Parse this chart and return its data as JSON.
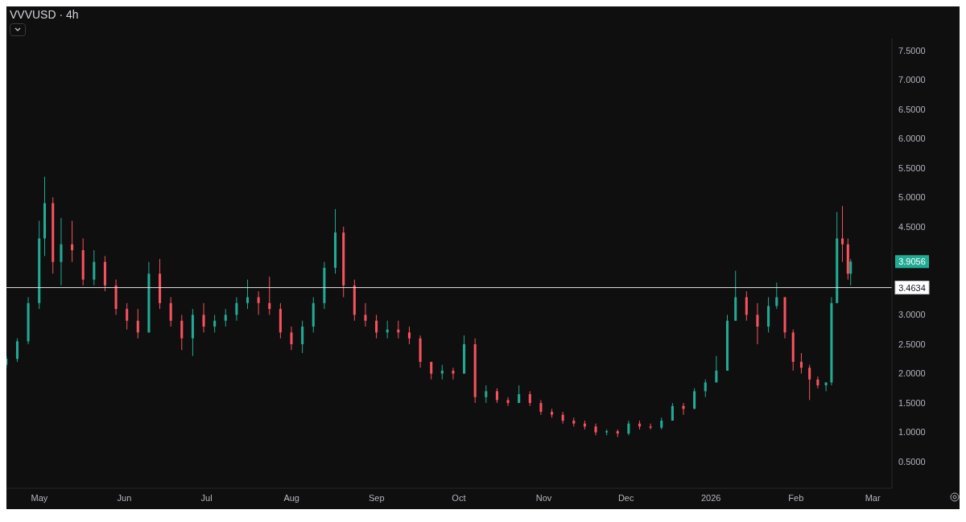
{
  "chart_data": {
    "type": "candlestick",
    "title": "VVVUSD · 4h",
    "x": [
      "2025-04-19",
      "2025-04-23",
      "2025-04-27",
      "2025-05-01",
      "2025-05-03",
      "2025-05-06",
      "2025-05-09",
      "2025-05-13",
      "2025-05-17",
      "2025-05-21",
      "2025-05-25",
      "2025-05-29",
      "2025-06-02",
      "2025-06-06",
      "2025-06-10",
      "2025-06-14",
      "2025-06-18",
      "2025-06-22",
      "2025-06-26",
      "2025-06-30",
      "2025-07-04",
      "2025-07-08",
      "2025-07-12",
      "2025-07-16",
      "2025-07-20",
      "2025-07-24",
      "2025-07-28",
      "2025-08-01",
      "2025-08-05",
      "2025-08-09",
      "2025-08-13",
      "2025-08-17",
      "2025-08-20",
      "2025-08-24",
      "2025-08-28",
      "2025-09-01",
      "2025-09-05",
      "2025-09-09",
      "2025-09-13",
      "2025-09-17",
      "2025-09-21",
      "2025-09-25",
      "2025-09-29",
      "2025-10-03",
      "2025-10-07",
      "2025-10-11",
      "2025-10-15",
      "2025-10-19",
      "2025-10-23",
      "2025-10-27",
      "2025-10-31",
      "2025-11-04",
      "2025-11-08",
      "2025-11-12",
      "2025-11-16",
      "2025-11-20",
      "2025-11-24",
      "2025-11-28",
      "2025-12-02",
      "2025-12-06",
      "2025-12-10",
      "2025-12-14",
      "2025-12-18",
      "2025-12-22",
      "2025-12-26",
      "2025-12-30",
      "2026-01-03",
      "2026-01-07",
      "2026-01-10",
      "2026-01-14",
      "2026-01-18",
      "2026-01-22",
      "2026-01-25",
      "2026-01-28",
      "2026-01-31",
      "2026-02-03",
      "2026-02-06",
      "2026-02-09",
      "2026-02-12",
      "2026-02-14",
      "2026-02-16",
      "2026-02-18",
      "2026-02-20",
      "2026-02-21"
    ],
    "ohlc": [
      [
        2.15,
        2.3,
        2.1,
        2.25
      ],
      [
        2.25,
        2.6,
        2.2,
        2.55
      ],
      [
        2.55,
        3.3,
        2.5,
        3.2
      ],
      [
        3.2,
        4.6,
        3.1,
        4.3
      ],
      [
        4.3,
        5.35,
        4.0,
        4.9
      ],
      [
        4.9,
        5.0,
        3.7,
        3.9
      ],
      [
        3.9,
        4.65,
        3.5,
        4.2
      ],
      [
        4.2,
        4.6,
        3.9,
        4.1
      ],
      [
        4.1,
        4.3,
        3.5,
        3.6
      ],
      [
        3.6,
        4.1,
        3.5,
        3.9
      ],
      [
        3.9,
        4.0,
        3.4,
        3.5
      ],
      [
        3.5,
        3.6,
        3.0,
        3.1
      ],
      [
        3.1,
        3.2,
        2.75,
        2.9
      ],
      [
        2.9,
        3.1,
        2.6,
        2.7
      ],
      [
        2.7,
        3.9,
        2.7,
        3.7
      ],
      [
        3.7,
        3.95,
        3.1,
        3.2
      ],
      [
        3.2,
        3.3,
        2.8,
        2.9
      ],
      [
        2.9,
        3.0,
        2.4,
        2.6
      ],
      [
        2.6,
        3.1,
        2.3,
        3.0
      ],
      [
        3.0,
        3.2,
        2.7,
        2.8
      ],
      [
        2.8,
        3.0,
        2.7,
        2.9
      ],
      [
        2.9,
        3.1,
        2.8,
        3.0
      ],
      [
        3.0,
        3.3,
        2.9,
        3.2
      ],
      [
        3.2,
        3.6,
        3.1,
        3.3
      ],
      [
        3.3,
        3.4,
        3.0,
        3.2
      ],
      [
        3.2,
        3.65,
        3.0,
        3.1
      ],
      [
        3.1,
        3.2,
        2.6,
        2.7
      ],
      [
        2.7,
        2.8,
        2.4,
        2.5
      ],
      [
        2.5,
        2.9,
        2.35,
        2.8
      ],
      [
        2.8,
        3.3,
        2.7,
        3.2
      ],
      [
        3.2,
        3.9,
        3.1,
        3.8
      ],
      [
        3.8,
        4.8,
        3.7,
        4.4
      ],
      [
        4.4,
        4.5,
        3.3,
        3.5
      ],
      [
        3.5,
        3.6,
        2.9,
        3.0
      ],
      [
        3.0,
        3.2,
        2.8,
        2.9
      ],
      [
        2.9,
        3.0,
        2.6,
        2.7
      ],
      [
        2.7,
        2.9,
        2.6,
        2.75
      ],
      [
        2.75,
        2.9,
        2.6,
        2.7
      ],
      [
        2.7,
        2.8,
        2.5,
        2.6
      ],
      [
        2.6,
        2.65,
        2.1,
        2.2
      ],
      [
        2.2,
        2.2,
        1.9,
        2.0
      ],
      [
        2.0,
        2.15,
        1.9,
        2.05
      ],
      [
        2.05,
        2.1,
        1.9,
        2.0
      ],
      [
        2.0,
        2.65,
        2.0,
        2.5
      ],
      [
        2.5,
        2.6,
        1.5,
        1.6
      ],
      [
        1.6,
        1.8,
        1.5,
        1.7
      ],
      [
        1.7,
        1.75,
        1.5,
        1.55
      ],
      [
        1.55,
        1.6,
        1.45,
        1.5
      ],
      [
        1.5,
        1.8,
        1.5,
        1.65
      ],
      [
        1.65,
        1.7,
        1.45,
        1.5
      ],
      [
        1.5,
        1.55,
        1.3,
        1.35
      ],
      [
        1.35,
        1.4,
        1.25,
        1.3
      ],
      [
        1.3,
        1.35,
        1.15,
        1.2
      ],
      [
        1.2,
        1.25,
        1.1,
        1.15
      ],
      [
        1.15,
        1.2,
        1.05,
        1.1
      ],
      [
        1.1,
        1.15,
        0.95,
        1.0
      ],
      [
        1.0,
        1.05,
        0.95,
        1.02
      ],
      [
        1.02,
        1.05,
        0.92,
        0.98
      ],
      [
        0.98,
        1.2,
        0.95,
        1.15
      ],
      [
        1.15,
        1.2,
        1.05,
        1.1
      ],
      [
        1.1,
        1.15,
        1.05,
        1.08
      ],
      [
        1.08,
        1.25,
        1.05,
        1.2
      ],
      [
        1.2,
        1.5,
        1.2,
        1.45
      ],
      [
        1.45,
        1.5,
        1.3,
        1.4
      ],
      [
        1.4,
        1.75,
        1.4,
        1.7
      ],
      [
        1.7,
        1.9,
        1.6,
        1.85
      ],
      [
        1.85,
        2.3,
        1.85,
        2.05
      ],
      [
        2.05,
        3.0,
        2.05,
        2.9
      ],
      [
        2.9,
        3.75,
        2.9,
        3.3
      ],
      [
        3.3,
        3.4,
        2.9,
        3.0
      ],
      [
        3.0,
        3.2,
        2.5,
        2.8
      ],
      [
        2.8,
        3.3,
        2.7,
        3.15
      ],
      [
        3.15,
        3.55,
        3.1,
        3.3
      ],
      [
        3.3,
        3.3,
        2.6,
        2.7
      ],
      [
        2.7,
        2.75,
        2.05,
        2.2
      ],
      [
        2.2,
        2.35,
        2.0,
        2.1
      ],
      [
        2.1,
        2.15,
        1.55,
        1.9
      ],
      [
        1.9,
        1.95,
        1.75,
        1.8
      ],
      [
        1.8,
        1.85,
        1.7,
        1.85
      ],
      [
        1.85,
        3.3,
        1.8,
        3.2
      ],
      [
        3.2,
        4.75,
        3.2,
        4.3
      ],
      [
        4.3,
        4.85,
        3.9,
        4.2
      ],
      [
        4.2,
        4.3,
        3.6,
        3.7
      ],
      [
        3.7,
        3.95,
        3.5,
        3.9056
      ]
    ],
    "colors": [
      "#22ab94",
      "#22ab94",
      "#22ab94",
      "#22ab94",
      "#22ab94",
      "#f7525f",
      "#22ab94",
      "#f7525f",
      "#f7525f",
      "#22ab94",
      "#f7525f",
      "#f7525f",
      "#f7525f",
      "#f7525f",
      "#22ab94",
      "#f7525f",
      "#f7525f",
      "#f7525f",
      "#22ab94",
      "#f7525f",
      "#22ab94",
      "#22ab94",
      "#22ab94",
      "#22ab94",
      "#f7525f",
      "#f7525f",
      "#f7525f",
      "#f7525f",
      "#22ab94",
      "#22ab94",
      "#22ab94",
      "#22ab94",
      "#f7525f",
      "#f7525f",
      "#f7525f",
      "#f7525f",
      "#22ab94",
      "#f7525f",
      "#f7525f",
      "#f7525f",
      "#f7525f",
      "#22ab94",
      "#f7525f",
      "#22ab94",
      "#f7525f",
      "#22ab94",
      "#f7525f",
      "#f7525f",
      "#22ab94",
      "#f7525f",
      "#f7525f",
      "#f7525f",
      "#f7525f",
      "#f7525f",
      "#f7525f",
      "#f7525f",
      "#22ab94",
      "#f7525f",
      "#22ab94",
      "#f7525f",
      "#f7525f",
      "#22ab94",
      "#22ab94",
      "#f7525f",
      "#22ab94",
      "#22ab94",
      "#22ab94",
      "#22ab94",
      "#22ab94",
      "#f7525f",
      "#f7525f",
      "#22ab94",
      "#22ab94",
      "#f7525f",
      "#f7525f",
      "#f7525f",
      "#f7525f",
      "#f7525f",
      "#22ab94",
      "#22ab94",
      "#22ab94",
      "#f7525f",
      "#f7525f",
      "#22ab94"
    ],
    "xlim": [
      "2025-04-19",
      "2026-03-08"
    ],
    "xticks": [
      {
        "value": "2025-05-01",
        "label": "May"
      },
      {
        "value": "2025-06-01",
        "label": "Jun"
      },
      {
        "value": "2025-07-01",
        "label": "Jul"
      },
      {
        "value": "2025-08-01",
        "label": "Aug"
      },
      {
        "value": "2025-09-01",
        "label": "Sep"
      },
      {
        "value": "2025-10-01",
        "label": "Oct"
      },
      {
        "value": "2025-11-01",
        "label": "Nov"
      },
      {
        "value": "2025-12-01",
        "label": "Dec"
      },
      {
        "value": "2026-01-01",
        "label": "2026"
      },
      {
        "value": "2026-02-01",
        "label": "Feb"
      },
      {
        "value": "2026-03-01",
        "label": "Mar"
      }
    ],
    "ylim": [
      0.05,
      7.7
    ],
    "yticks": [
      {
        "value": 0.5,
        "label": "0.5000"
      },
      {
        "value": 1,
        "label": "1.0000"
      },
      {
        "value": 1.5,
        "label": "1.5000"
      },
      {
        "value": 2,
        "label": "2.0000"
      },
      {
        "value": 2.5,
        "label": "2.5000"
      },
      {
        "value": 3,
        "label": "3.0000"
      },
      {
        "value": 4.5,
        "label": "4.5000"
      },
      {
        "value": 5,
        "label": "5.0000"
      },
      {
        "value": 5.5,
        "label": "5.5000"
      },
      {
        "value": 6,
        "label": "6.0000"
      },
      {
        "value": 6.5,
        "label": "6.5000"
      },
      {
        "value": 7,
        "label": "7.0000"
      },
      {
        "value": 7.5,
        "label": "7.5000"
      }
    ],
    "ref_lines": [
      {
        "axis": "y",
        "value": 3.4634,
        "label": "3.4634",
        "color": "#e0e0e0"
      }
    ],
    "annotations": [
      "3.9056"
    ]
  }
}
